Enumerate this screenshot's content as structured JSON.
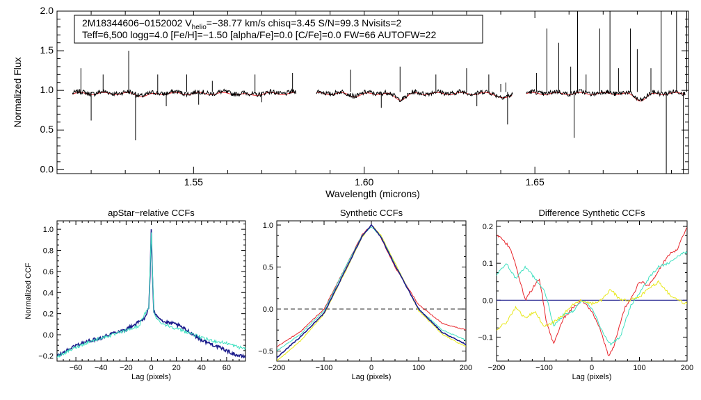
{
  "info": {
    "line1_prefix": "2M18344606−0152002  V",
    "line1_sub": "helio",
    "line1_suffix": "=−38.77 km/s  chisq=3.45  S/N=99.3  Nvisits=2",
    "line2": "Teff=6,500 logg=4.0 [Fe/H]=−1.50 [alpha/Fe]=0.0 [C/Fe]=0.0 FW=66 AUTOFW=22"
  },
  "colors": {
    "observed": "#000000",
    "model": "#e8242a",
    "blue": "#1c1c8c",
    "cyan": "#3fe0c0",
    "yellow": "#e8e818",
    "red": "#e8242a",
    "dash": "#555555"
  },
  "chart_data": [
    {
      "id": "spectrum",
      "type": "line",
      "title": "",
      "xlabel": "Wavelength (microns)",
      "ylabel": "Normalized Flux",
      "xlim": [
        1.51,
        1.695
      ],
      "ylim": [
        -0.05,
        2.0
      ],
      "xticks": [
        1.55,
        1.6,
        1.65
      ],
      "xtick_labels": [
        "1.55",
        "1.60",
        "1.65"
      ],
      "yticks": [
        0.0,
        0.5,
        1.0,
        1.5,
        2.0
      ],
      "ytick_labels": [
        "0.0",
        "0.5",
        "1.0",
        "1.5",
        "2.0"
      ],
      "chips": [
        [
          1.5145,
          1.58
        ],
        [
          1.586,
          1.6435
        ],
        [
          1.6475,
          1.694
        ]
      ],
      "series": [
        {
          "name": "observed spectrum",
          "color_key": "observed"
        },
        {
          "name": "model spectrum",
          "color_key": "model"
        }
      ],
      "dips": [
        [
          1.5355,
          0.03
        ],
        [
          1.5665,
          0.02
        ],
        [
          1.5975,
          0.03
        ],
        [
          1.6105,
          0.07
        ],
        [
          1.6415,
          0.06
        ],
        [
          1.681,
          0.08
        ]
      ],
      "spikes": [
        [
          1.517,
          1.28
        ],
        [
          1.52,
          0.62
        ],
        [
          1.5235,
          1.2
        ],
        [
          1.531,
          1.5
        ],
        [
          1.533,
          0.37
        ],
        [
          1.5395,
          1.2
        ],
        [
          1.542,
          0.8
        ],
        [
          1.548,
          1.2
        ],
        [
          1.5515,
          0.82
        ],
        [
          1.5555,
          1.12
        ],
        [
          1.568,
          1.2
        ],
        [
          1.57,
          0.85
        ],
        [
          1.579,
          1.22
        ],
        [
          1.596,
          1.26
        ],
        [
          1.605,
          0.78
        ],
        [
          1.6105,
          1.3
        ],
        [
          1.621,
          1.2
        ],
        [
          1.63,
          1.28
        ],
        [
          1.633,
          0.8
        ],
        [
          1.6365,
          1.2
        ],
        [
          1.64,
          1.08
        ],
        [
          1.642,
          0.57
        ],
        [
          1.6415,
          1.1
        ],
        [
          1.6505,
          1.22
        ],
        [
          1.6535,
          1.78
        ],
        [
          1.657,
          1.6
        ],
        [
          1.6605,
          1.3
        ],
        [
          1.6625,
          2.0
        ],
        [
          1.6615,
          0.4
        ],
        [
          1.665,
          1.2
        ],
        [
          1.669,
          1.78
        ],
        [
          1.672,
          2.0
        ],
        [
          1.6745,
          1.28
        ],
        [
          1.678,
          1.78
        ],
        [
          1.68,
          1.52
        ],
        [
          1.684,
          1.28
        ],
        [
          1.687,
          2.0
        ],
        [
          1.6885,
          -0.05
        ],
        [
          1.6915,
          2.0
        ],
        [
          1.6935,
          -0.05
        ],
        [
          1.6945,
          2.0
        ]
      ]
    },
    {
      "id": "apstar",
      "type": "line",
      "title": "apStar−relative CCFs",
      "xlabel": "Lag (pixels)",
      "ylabel": "Normalized CCF",
      "xlim": [
        -75,
        75
      ],
      "ylim": [
        -0.25,
        1.08
      ],
      "xticks": [
        -60,
        -40,
        -20,
        0,
        20,
        40,
        60
      ],
      "xtick_labels": [
        "−60",
        "−40",
        "−20",
        "0",
        "20",
        "40",
        "60"
      ],
      "yticks": [
        -0.2,
        0.0,
        0.2,
        0.4,
        0.6,
        0.8,
        1.0
      ],
      "ytick_labels": [
        "−0.2",
        "0.0",
        "0.2",
        "0.4",
        "0.6",
        "0.8",
        "1.0"
      ],
      "series": [
        {
          "name": "visit 1",
          "color_key": "blue",
          "x": [
            -75,
            -70,
            -60,
            -50,
            -40,
            -30,
            -20,
            -10,
            -5,
            -2,
            -1,
            0,
            1,
            2,
            5,
            10,
            20,
            30,
            40,
            50,
            60,
            65,
            70,
            75
          ],
          "y": [
            -0.2,
            -0.17,
            -0.1,
            -0.06,
            -0.03,
            0.02,
            0.05,
            0.12,
            0.16,
            0.25,
            0.55,
            1.0,
            0.55,
            0.22,
            0.18,
            0.12,
            0.1,
            0.03,
            -0.05,
            -0.1,
            -0.15,
            -0.18,
            -0.2,
            -0.21
          ]
        },
        {
          "name": "visit 2",
          "color_key": "cyan",
          "x": [
            -75,
            -70,
            -60,
            -50,
            -40,
            -30,
            -20,
            -10,
            -5,
            -2,
            -1,
            0,
            1,
            2,
            5,
            10,
            20,
            30,
            40,
            50,
            60,
            65,
            70,
            75
          ],
          "y": [
            -0.21,
            -0.18,
            -0.12,
            -0.07,
            -0.03,
            0.0,
            0.04,
            0.08,
            0.2,
            0.25,
            0.6,
            0.97,
            0.6,
            0.22,
            0.14,
            0.1,
            0.06,
            0.02,
            -0.03,
            -0.06,
            -0.08,
            -0.1,
            -0.12,
            -0.13
          ]
        }
      ]
    },
    {
      "id": "synthetic",
      "type": "line",
      "title": "Synthetic CCFs",
      "xlabel": "Lag (pixels)",
      "ylabel": "",
      "xlim": [
        -200,
        200
      ],
      "ylim": [
        -0.62,
        1.05
      ],
      "xticks": [
        -200,
        -100,
        0,
        100,
        200
      ],
      "xtick_labels": [
        "−200",
        "−100",
        "0",
        "100",
        "200"
      ],
      "yticks": [
        -0.5,
        0.0,
        0.5,
        1.0
      ],
      "ytick_labels": [
        "−0.5",
        "0.0",
        "0.5",
        "1.0"
      ],
      "zero_line": 0.0,
      "series": [
        {
          "name": "red",
          "color_key": "red",
          "x": [
            -200,
            -150,
            -100,
            -50,
            -20,
            0,
            20,
            50,
            100,
            150,
            200
          ],
          "y": [
            -0.45,
            -0.27,
            0.0,
            0.55,
            0.88,
            1.0,
            0.85,
            0.5,
            0.05,
            -0.17,
            -0.25
          ]
        },
        {
          "name": "yellow",
          "color_key": "yellow",
          "x": [
            -200,
            -150,
            -100,
            -50,
            -20,
            0,
            20,
            50,
            100,
            150,
            200
          ],
          "y": [
            -0.62,
            -0.38,
            -0.06,
            0.5,
            0.85,
            1.0,
            0.88,
            0.55,
            -0.02,
            -0.3,
            -0.45
          ]
        },
        {
          "name": "cyan",
          "color_key": "cyan",
          "x": [
            -200,
            -150,
            -100,
            -50,
            -20,
            0,
            20,
            50,
            100,
            150,
            200
          ],
          "y": [
            -0.5,
            -0.3,
            -0.02,
            0.55,
            0.87,
            0.98,
            0.87,
            0.53,
            0.0,
            -0.25,
            -0.37
          ]
        },
        {
          "name": "blue",
          "color_key": "blue",
          "x": [
            -200,
            -150,
            -100,
            -50,
            -20,
            0,
            20,
            50,
            100,
            150,
            200
          ],
          "y": [
            -0.58,
            -0.33,
            -0.05,
            0.52,
            0.86,
            1.0,
            0.86,
            0.52,
            0.0,
            -0.28,
            -0.42
          ]
        }
      ]
    },
    {
      "id": "difference",
      "type": "line",
      "title": "Difference Synthetic CCFs",
      "xlabel": "Lag (pixels)",
      "ylabel": "",
      "xlim": [
        -200,
        200
      ],
      "ylim": [
        -0.165,
        0.215
      ],
      "xticks": [
        -200,
        -100,
        0,
        100,
        200
      ],
      "xtick_labels": [
        "−200",
        "−100",
        "0",
        "100",
        "200"
      ],
      "yticks": [
        -0.1,
        0.0,
        0.1,
        0.2
      ],
      "ytick_labels": [
        "−0.1",
        "0.0",
        "0.1",
        "0.2"
      ],
      "zero_line": 0.0,
      "series": [
        {
          "name": "zero",
          "color_key": "blue",
          "x": [
            -200,
            200
          ],
          "y": [
            0.0,
            0.0
          ]
        },
        {
          "name": "red",
          "color_key": "red",
          "x": [
            -200,
            -185,
            -170,
            -155,
            -140,
            -125,
            -110,
            -95,
            -80,
            -60,
            -40,
            -20,
            0,
            15,
            25,
            35,
            45,
            55,
            70,
            85,
            100,
            120,
            140,
            160,
            180,
            200
          ],
          "y": [
            0.18,
            0.16,
            0.14,
            0.07,
            0.0,
            0.03,
            0.06,
            -0.06,
            -0.12,
            -0.05,
            -0.02,
            0.0,
            -0.03,
            -0.07,
            -0.11,
            -0.15,
            -0.13,
            -0.08,
            -0.02,
            0.01,
            0.05,
            0.04,
            0.08,
            0.12,
            0.14,
            0.2
          ]
        },
        {
          "name": "cyan",
          "color_key": "cyan",
          "x": [
            -200,
            -180,
            -160,
            -140,
            -120,
            -100,
            -80,
            -60,
            -40,
            -20,
            0,
            20,
            40,
            60,
            80,
            100,
            120,
            140,
            160,
            180,
            200
          ],
          "y": [
            0.07,
            0.1,
            0.06,
            0.09,
            0.06,
            0.03,
            -0.07,
            -0.04,
            -0.03,
            0.0,
            -0.02,
            -0.08,
            -0.12,
            -0.1,
            -0.02,
            0.02,
            0.06,
            0.09,
            0.1,
            0.12,
            0.13
          ]
        },
        {
          "name": "yellow",
          "color_key": "yellow",
          "x": [
            -200,
            -180,
            -160,
            -140,
            -120,
            -100,
            -80,
            -60,
            -40,
            -20,
            0,
            20,
            40,
            60,
            80,
            100,
            120,
            140,
            160,
            180,
            200
          ],
          "y": [
            -0.08,
            -0.06,
            -0.02,
            -0.05,
            -0.03,
            -0.07,
            -0.06,
            -0.04,
            -0.01,
            0.0,
            -0.01,
            0.0,
            0.03,
            0.0,
            0.0,
            0.01,
            0.03,
            0.05,
            0.02,
            0.0,
            -0.01
          ]
        }
      ]
    }
  ]
}
